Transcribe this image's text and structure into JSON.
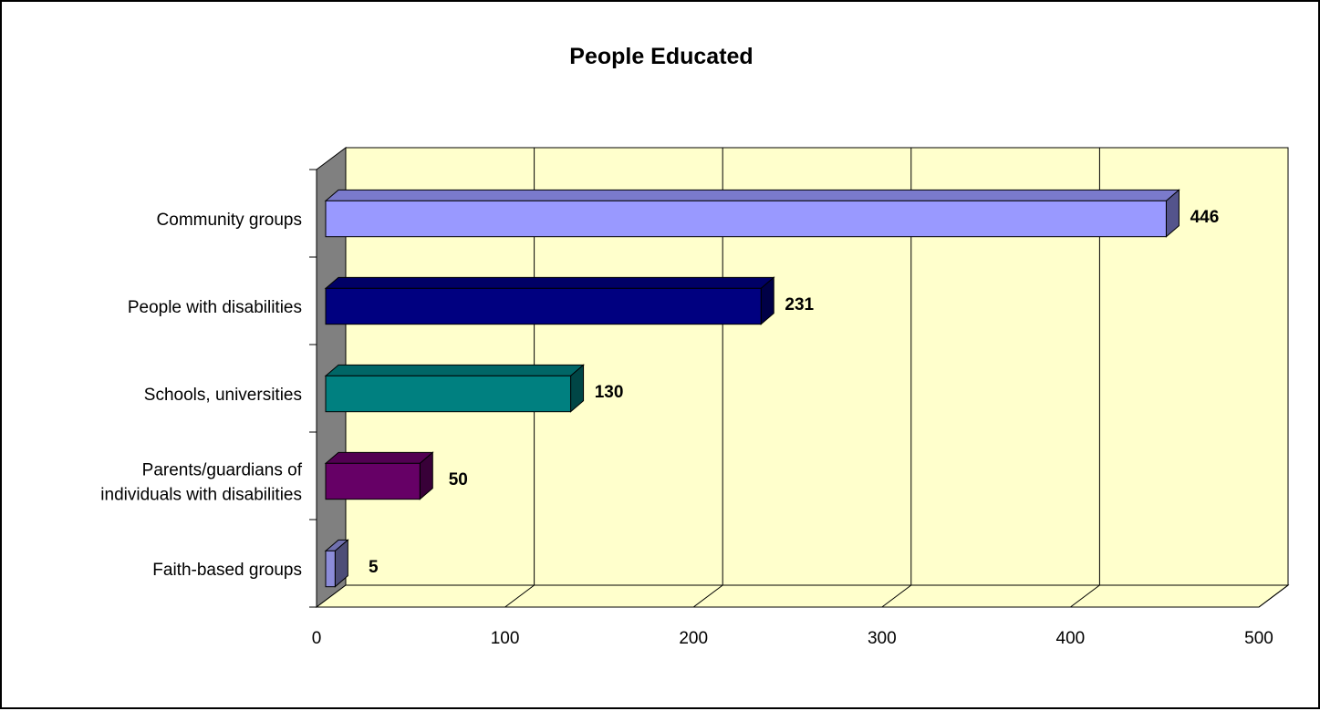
{
  "chart_data": {
    "type": "bar",
    "orientation": "horizontal",
    "style": "3d",
    "title": "People Educated",
    "xlabel": "",
    "ylabel": "",
    "categories": [
      [
        "Community groups"
      ],
      [
        "People with disabilities"
      ],
      [
        "Schools, universities"
      ],
      [
        "Parents/guardians of",
        "individuals with disabilities"
      ],
      [
        "Faith-based groups"
      ]
    ],
    "values": [
      446,
      231,
      130,
      50,
      5
    ],
    "value_labels": [
      "446",
      "231",
      "130",
      "50",
      "5"
    ],
    "bar_colors": [
      "#9999ff",
      "#000080",
      "#008080",
      "#660066",
      "#8c8cd9"
    ],
    "xlim": [
      0,
      500
    ],
    "xticks": [
      0,
      100,
      200,
      300,
      400,
      500
    ],
    "xtick_labels": [
      "0",
      "100",
      "200",
      "300",
      "400",
      "500"
    ],
    "grid": "vertical",
    "legend": "none",
    "plot_background": "#ffffcc",
    "side_wall_color": "#808080"
  }
}
